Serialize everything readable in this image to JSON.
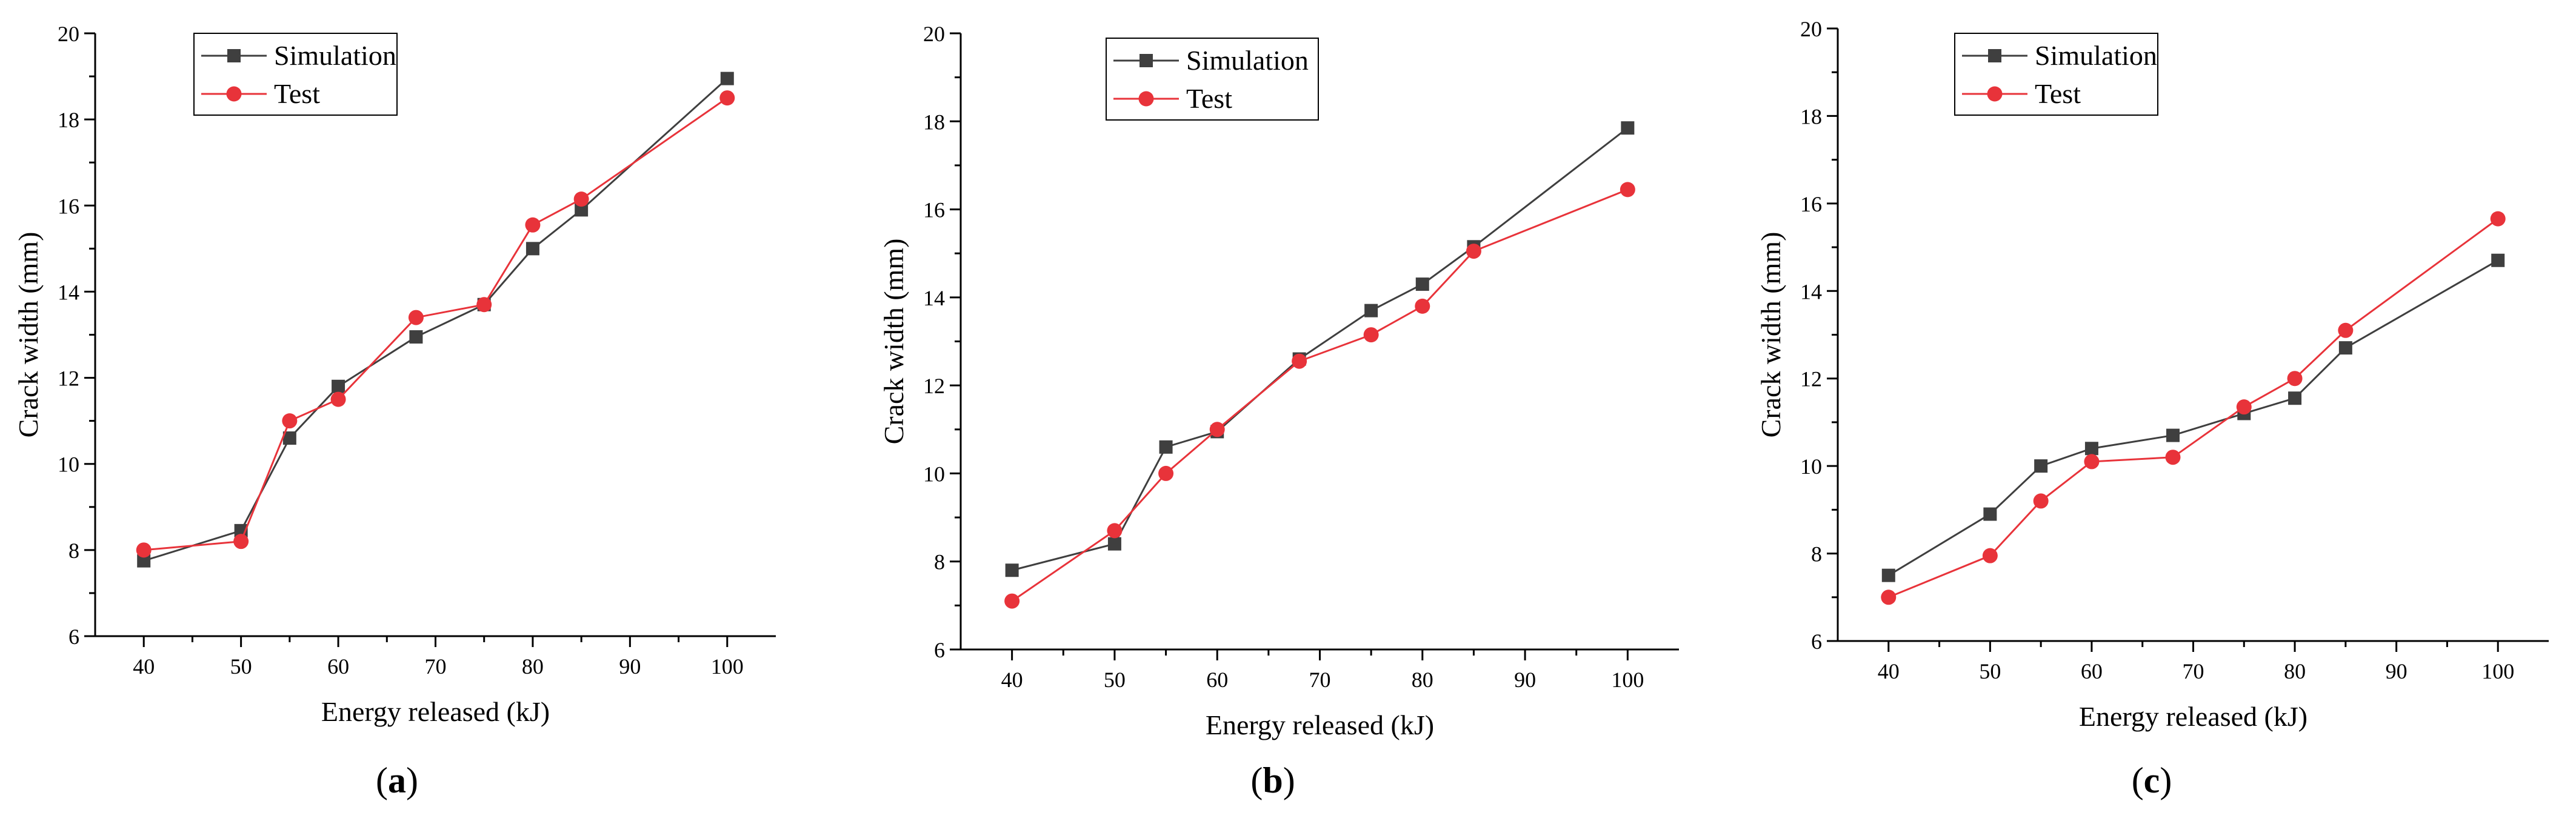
{
  "chart_data": [
    {
      "type": "line",
      "caption_letter": "a",
      "xlabel": "Energy  released (kJ)",
      "ylabel": "Crack width (mm)",
      "xlim": [
        35,
        105
      ],
      "ylim": [
        6,
        20
      ],
      "xticks": [
        40,
        50,
        60,
        70,
        80,
        90,
        100
      ],
      "yticks": [
        6,
        8,
        10,
        12,
        14,
        16,
        18,
        20
      ],
      "legend_position": "top-left",
      "series": [
        {
          "name": "Simulation",
          "color": "#3f3f3f",
          "marker": "square",
          "x": [
            40,
            50,
            55,
            60,
            68,
            75,
            80,
            85,
            100
          ],
          "y": [
            7.75,
            8.45,
            10.6,
            11.8,
            12.95,
            13.7,
            15.0,
            15.9,
            18.95
          ]
        },
        {
          "name": "Test",
          "color": "#e8333a",
          "marker": "circle",
          "x": [
            40,
            50,
            55,
            60,
            68,
            75,
            80,
            85,
            100
          ],
          "y": [
            8.0,
            8.2,
            11.0,
            11.5,
            13.4,
            13.7,
            15.55,
            16.15,
            18.5
          ]
        }
      ]
    },
    {
      "type": "line",
      "caption_letter": "b",
      "xlabel": "Energy released (kJ)",
      "ylabel": "Crack width (mm)",
      "xlim": [
        35,
        105
      ],
      "ylim": [
        6,
        20
      ],
      "xticks": [
        40,
        50,
        60,
        70,
        80,
        90,
        100
      ],
      "yticks": [
        6,
        8,
        10,
        12,
        14,
        16,
        18,
        20
      ],
      "legend_position": "top-left",
      "series": [
        {
          "name": "Simulation",
          "color": "#3f3f3f",
          "marker": "square",
          "x": [
            40,
            50,
            55,
            60,
            68,
            75,
            80,
            85,
            100
          ],
          "y": [
            7.8,
            8.4,
            10.6,
            10.95,
            12.6,
            13.7,
            14.3,
            15.15,
            17.85
          ]
        },
        {
          "name": "Test",
          "color": "#e8333a",
          "marker": "circle",
          "x": [
            40,
            50,
            55,
            60,
            68,
            75,
            80,
            85,
            100
          ],
          "y": [
            7.1,
            8.7,
            10.0,
            11.0,
            12.55,
            13.15,
            13.8,
            15.05,
            16.45
          ]
        }
      ]
    },
    {
      "type": "line",
      "caption_letter": "c",
      "xlabel": "Energy released (kJ)",
      "ylabel": "Crack width (mm)",
      "xlim": [
        35,
        105
      ],
      "ylim": [
        6,
        20
      ],
      "xticks": [
        40,
        50,
        60,
        70,
        80,
        90,
        100
      ],
      "yticks": [
        6,
        8,
        10,
        12,
        14,
        16,
        18,
        20
      ],
      "legend_position": "top-left",
      "series": [
        {
          "name": "Simulation",
          "color": "#3f3f3f",
          "marker": "square",
          "x": [
            40,
            50,
            55,
            60,
            68,
            75,
            80,
            85,
            100
          ],
          "y": [
            7.5,
            8.9,
            10.0,
            10.4,
            10.7,
            11.2,
            11.55,
            12.7,
            14.7
          ]
        },
        {
          "name": "Test",
          "color": "#e8333a",
          "marker": "circle",
          "x": [
            40,
            50,
            55,
            60,
            68,
            75,
            80,
            85,
            100
          ],
          "y": [
            7.0,
            7.95,
            9.2,
            10.1,
            10.2,
            11.35,
            12.0,
            13.1,
            15.65
          ]
        }
      ]
    }
  ]
}
